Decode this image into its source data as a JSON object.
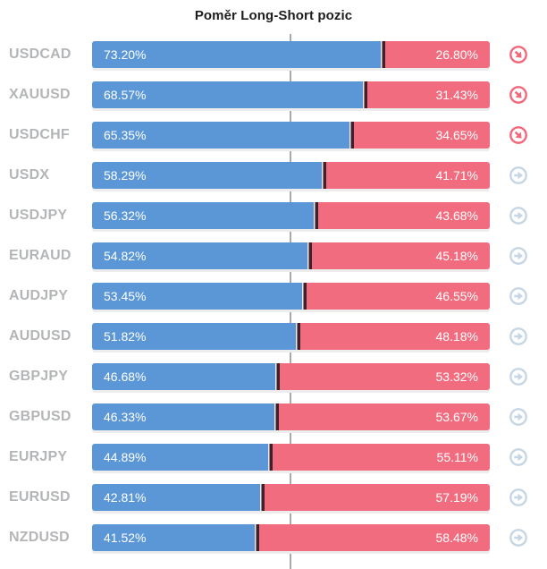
{
  "title": "Poměr Long-Short pozic",
  "colors": {
    "long_segment": "#5b97d6",
    "short_segment": "#f16c7e",
    "segment_divider": "#3f2229",
    "reference_line": "#a9a9a9",
    "pair_label": "#b3b5b7",
    "icon_down": "#f2697c",
    "icon_flat": "#c6d6e4",
    "percent_text": "#ffffff",
    "title_text": "#1d1d1d"
  },
  "rows": [
    {
      "pair": "USDCAD",
      "long": 73.2,
      "short": 26.8,
      "long_label": "73.20%",
      "short_label": "26.80%",
      "trend": "down",
      "icon": "circle-arrow-down-right-icon"
    },
    {
      "pair": "XAUUSD",
      "long": 68.57,
      "short": 31.43,
      "long_label": "68.57%",
      "short_label": "31.43%",
      "trend": "down",
      "icon": "circle-arrow-down-right-icon"
    },
    {
      "pair": "USDCHF",
      "long": 65.35,
      "short": 34.65,
      "long_label": "65.35%",
      "short_label": "34.65%",
      "trend": "down",
      "icon": "circle-arrow-down-right-icon"
    },
    {
      "pair": "USDX",
      "long": 58.29,
      "short": 41.71,
      "long_label": "58.29%",
      "short_label": "41.71%",
      "trend": "flat",
      "icon": "circle-arrow-right-icon"
    },
    {
      "pair": "USDJPY",
      "long": 56.32,
      "short": 43.68,
      "long_label": "56.32%",
      "short_label": "43.68%",
      "trend": "flat",
      "icon": "circle-arrow-right-icon"
    },
    {
      "pair": "EURAUD",
      "long": 54.82,
      "short": 45.18,
      "long_label": "54.82%",
      "short_label": "45.18%",
      "trend": "flat",
      "icon": "circle-arrow-right-icon"
    },
    {
      "pair": "AUDJPY",
      "long": 53.45,
      "short": 46.55,
      "long_label": "53.45%",
      "short_label": "46.55%",
      "trend": "flat",
      "icon": "circle-arrow-right-icon"
    },
    {
      "pair": "AUDUSD",
      "long": 51.82,
      "short": 48.18,
      "long_label": "51.82%",
      "short_label": "48.18%",
      "trend": "flat",
      "icon": "circle-arrow-right-icon"
    },
    {
      "pair": "GBPJPY",
      "long": 46.68,
      "short": 53.32,
      "long_label": "46.68%",
      "short_label": "53.32%",
      "trend": "flat",
      "icon": "circle-arrow-right-icon"
    },
    {
      "pair": "GBPUSD",
      "long": 46.33,
      "short": 53.67,
      "long_label": "46.33%",
      "short_label": "53.67%",
      "trend": "flat",
      "icon": "circle-arrow-right-icon"
    },
    {
      "pair": "EURJPY",
      "long": 44.89,
      "short": 55.11,
      "long_label": "44.89%",
      "short_label": "55.11%",
      "trend": "flat",
      "icon": "circle-arrow-right-icon"
    },
    {
      "pair": "EURUSD",
      "long": 42.81,
      "short": 57.19,
      "long_label": "42.81%",
      "short_label": "57.19%",
      "trend": "flat",
      "icon": "circle-arrow-right-icon"
    },
    {
      "pair": "NZDUSD",
      "long": 41.52,
      "short": 58.48,
      "long_label": "41.52%",
      "short_label": "58.48%",
      "trend": "flat",
      "icon": "circle-arrow-right-icon"
    }
  ],
  "chart_data": {
    "type": "bar",
    "orientation": "horizontal",
    "stacked": true,
    "title": "Poměr Long-Short pozic",
    "categories": [
      "USDCAD",
      "XAUUSD",
      "USDCHF",
      "USDX",
      "USDJPY",
      "EURAUD",
      "AUDJPY",
      "AUDUSD",
      "GBPJPY",
      "GBPUSD",
      "EURJPY",
      "EURUSD",
      "NZDUSD"
    ],
    "series": [
      {
        "name": "Long",
        "color": "#5b97d6",
        "values": [
          73.2,
          68.57,
          65.35,
          58.29,
          56.32,
          54.82,
          53.45,
          51.82,
          46.68,
          46.33,
          44.89,
          42.81,
          41.52
        ]
      },
      {
        "name": "Short",
        "color": "#f16c7e",
        "values": [
          26.8,
          31.43,
          34.65,
          41.71,
          43.68,
          45.18,
          46.55,
          48.18,
          53.32,
          53.67,
          55.11,
          57.19,
          58.48
        ]
      }
    ],
    "value_label_format": "0.00%",
    "xlabel": "",
    "ylabel": "",
    "xlim": [
      0,
      100
    ],
    "reference_line_x": 50,
    "grid": false,
    "legend": "none"
  }
}
